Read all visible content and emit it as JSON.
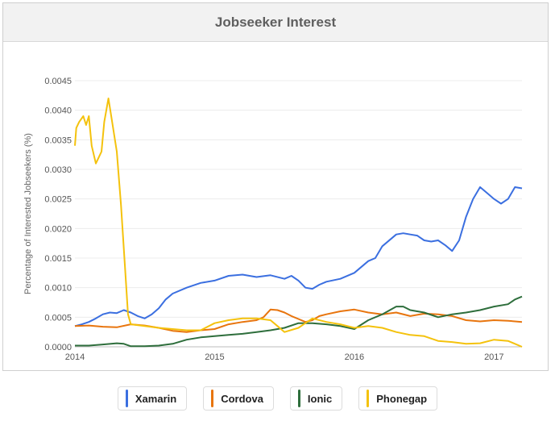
{
  "chart_data": {
    "type": "line",
    "title": "Jobseeker Interest",
    "ylabel": "Percentage of Interested Jobseekers (%)",
    "xlabel": "",
    "xlim": [
      2014.0,
      2017.2
    ],
    "ylim": [
      0,
      0.0045
    ],
    "xticks": [
      {
        "value": 2014,
        "label": "2014"
      },
      {
        "value": 2015,
        "label": "2015"
      },
      {
        "value": 2016,
        "label": "2016"
      },
      {
        "value": 2017,
        "label": "2017"
      }
    ],
    "yticks": [
      {
        "value": 0,
        "label": "0.0000"
      },
      {
        "value": 0.0005,
        "label": "0.0005"
      },
      {
        "value": 0.001,
        "label": "0.0010"
      },
      {
        "value": 0.0015,
        "label": "0.0015"
      },
      {
        "value": 0.002,
        "label": "0.0020"
      },
      {
        "value": 0.0025,
        "label": "0.0025"
      },
      {
        "value": 0.003,
        "label": "0.0030"
      },
      {
        "value": 0.0035,
        "label": "0.0035"
      },
      {
        "value": 0.004,
        "label": "0.0040"
      },
      {
        "value": 0.0045,
        "label": "0.0045"
      }
    ],
    "grid": true,
    "legend": "bottom",
    "series": [
      {
        "name": "Xamarin",
        "color": "#3b6fe0",
        "points": [
          [
            2014.0,
            0.00035
          ],
          [
            2014.05,
            0.00038
          ],
          [
            2014.1,
            0.00042
          ],
          [
            2014.15,
            0.00048
          ],
          [
            2014.2,
            0.00055
          ],
          [
            2014.25,
            0.00058
          ],
          [
            2014.3,
            0.00057
          ],
          [
            2014.35,
            0.00062
          ],
          [
            2014.4,
            0.00058
          ],
          [
            2014.45,
            0.00052
          ],
          [
            2014.5,
            0.00048
          ],
          [
            2014.55,
            0.00055
          ],
          [
            2014.6,
            0.00065
          ],
          [
            2014.65,
            0.0008
          ],
          [
            2014.7,
            0.0009
          ],
          [
            2014.8,
            0.001
          ],
          [
            2014.9,
            0.00108
          ],
          [
            2015.0,
            0.00112
          ],
          [
            2015.1,
            0.0012
          ],
          [
            2015.2,
            0.00122
          ],
          [
            2015.3,
            0.00118
          ],
          [
            2015.4,
            0.00121
          ],
          [
            2015.5,
            0.00115
          ],
          [
            2015.55,
            0.0012
          ],
          [
            2015.6,
            0.00112
          ],
          [
            2015.65,
            0.001
          ],
          [
            2015.7,
            0.00098
          ],
          [
            2015.75,
            0.00105
          ],
          [
            2015.8,
            0.0011
          ],
          [
            2015.9,
            0.00115
          ],
          [
            2016.0,
            0.00125
          ],
          [
            2016.1,
            0.00145
          ],
          [
            2016.15,
            0.0015
          ],
          [
            2016.2,
            0.0017
          ],
          [
            2016.3,
            0.0019
          ],
          [
            2016.35,
            0.00192
          ],
          [
            2016.4,
            0.0019
          ],
          [
            2016.45,
            0.00188
          ],
          [
            2016.5,
            0.0018
          ],
          [
            2016.55,
            0.00178
          ],
          [
            2016.6,
            0.0018
          ],
          [
            2016.65,
            0.00172
          ],
          [
            2016.7,
            0.00162
          ],
          [
            2016.75,
            0.0018
          ],
          [
            2016.8,
            0.0022
          ],
          [
            2016.85,
            0.0025
          ],
          [
            2016.9,
            0.0027
          ],
          [
            2016.95,
            0.0026
          ],
          [
            2017.0,
            0.0025
          ],
          [
            2017.05,
            0.00242
          ],
          [
            2017.1,
            0.0025
          ],
          [
            2017.15,
            0.0027
          ],
          [
            2017.2,
            0.00268
          ]
        ]
      },
      {
        "name": "Cordova",
        "color": "#e8750e",
        "points": [
          [
            2014.0,
            0.00035
          ],
          [
            2014.1,
            0.00036
          ],
          [
            2014.2,
            0.00034
          ],
          [
            2014.3,
            0.00033
          ],
          [
            2014.4,
            0.00038
          ],
          [
            2014.5,
            0.00036
          ],
          [
            2014.6,
            0.00032
          ],
          [
            2014.7,
            0.00027
          ],
          [
            2014.8,
            0.00025
          ],
          [
            2014.9,
            0.00028
          ],
          [
            2015.0,
            0.0003
          ],
          [
            2015.1,
            0.00038
          ],
          [
            2015.2,
            0.00042
          ],
          [
            2015.3,
            0.00045
          ],
          [
            2015.35,
            0.0005
          ],
          [
            2015.4,
            0.00063
          ],
          [
            2015.45,
            0.00062
          ],
          [
            2015.5,
            0.00058
          ],
          [
            2015.55,
            0.00052
          ],
          [
            2015.6,
            0.00047
          ],
          [
            2015.65,
            0.00042
          ],
          [
            2015.7,
            0.00045
          ],
          [
            2015.75,
            0.00052
          ],
          [
            2015.8,
            0.00055
          ],
          [
            2015.9,
            0.0006
          ],
          [
            2016.0,
            0.00063
          ],
          [
            2016.1,
            0.00058
          ],
          [
            2016.2,
            0.00055
          ],
          [
            2016.3,
            0.00058
          ],
          [
            2016.4,
            0.00052
          ],
          [
            2016.5,
            0.00056
          ],
          [
            2016.6,
            0.00055
          ],
          [
            2016.7,
            0.00052
          ],
          [
            2016.8,
            0.00045
          ],
          [
            2016.9,
            0.00043
          ],
          [
            2017.0,
            0.00045
          ],
          [
            2017.1,
            0.00044
          ],
          [
            2017.2,
            0.00042
          ]
        ]
      },
      {
        "name": "Ionic",
        "color": "#2e6e3c",
        "points": [
          [
            2014.0,
            2e-05
          ],
          [
            2014.1,
            2e-05
          ],
          [
            2014.2,
            4e-05
          ],
          [
            2014.3,
            6e-05
          ],
          [
            2014.35,
            5e-05
          ],
          [
            2014.4,
            1e-05
          ],
          [
            2014.5,
            1e-05
          ],
          [
            2014.6,
            2e-05
          ],
          [
            2014.7,
            5e-05
          ],
          [
            2014.8,
            0.00012
          ],
          [
            2014.9,
            0.00016
          ],
          [
            2015.0,
            0.00018
          ],
          [
            2015.1,
            0.0002
          ],
          [
            2015.2,
            0.00022
          ],
          [
            2015.3,
            0.00025
          ],
          [
            2015.4,
            0.00028
          ],
          [
            2015.45,
            0.0003
          ],
          [
            2015.5,
            0.00032
          ],
          [
            2015.6,
            0.0004
          ],
          [
            2015.7,
            0.0004
          ],
          [
            2015.8,
            0.00038
          ],
          [
            2015.9,
            0.00035
          ],
          [
            2016.0,
            0.0003
          ],
          [
            2016.1,
            0.00045
          ],
          [
            2016.2,
            0.00055
          ],
          [
            2016.3,
            0.00068
          ],
          [
            2016.35,
            0.00068
          ],
          [
            2016.4,
            0.00062
          ],
          [
            2016.5,
            0.00058
          ],
          [
            2016.6,
            0.0005
          ],
          [
            2016.7,
            0.00055
          ],
          [
            2016.8,
            0.00058
          ],
          [
            2016.9,
            0.00062
          ],
          [
            2017.0,
            0.00068
          ],
          [
            2017.1,
            0.00072
          ],
          [
            2017.15,
            0.0008
          ],
          [
            2017.2,
            0.00085
          ]
        ]
      },
      {
        "name": "Phonegap",
        "color": "#f4c20d",
        "points": [
          [
            2014.0,
            0.0034
          ],
          [
            2014.01,
            0.0037
          ],
          [
            2014.03,
            0.0038
          ],
          [
            2014.06,
            0.0039
          ],
          [
            2014.08,
            0.00375
          ],
          [
            2014.1,
            0.0039
          ],
          [
            2014.12,
            0.0034
          ],
          [
            2014.15,
            0.0031
          ],
          [
            2014.17,
            0.0032
          ],
          [
            2014.19,
            0.0033
          ],
          [
            2014.21,
            0.0038
          ],
          [
            2014.24,
            0.0042
          ],
          [
            2014.26,
            0.0039
          ],
          [
            2014.3,
            0.0033
          ],
          [
            2014.33,
            0.0024
          ],
          [
            2014.36,
            0.0013
          ],
          [
            2014.38,
            0.00055
          ],
          [
            2014.4,
            0.00038
          ],
          [
            2014.5,
            0.00035
          ],
          [
            2014.6,
            0.00032
          ],
          [
            2014.7,
            0.0003
          ],
          [
            2014.8,
            0.00028
          ],
          [
            2014.9,
            0.00028
          ],
          [
            2015.0,
            0.0004
          ],
          [
            2015.1,
            0.00045
          ],
          [
            2015.2,
            0.00048
          ],
          [
            2015.3,
            0.00048
          ],
          [
            2015.4,
            0.00045
          ],
          [
            2015.45,
            0.00035
          ],
          [
            2015.5,
            0.00025
          ],
          [
            2015.6,
            0.00032
          ],
          [
            2015.7,
            0.00048
          ],
          [
            2015.8,
            0.00042
          ],
          [
            2015.9,
            0.00038
          ],
          [
            2016.0,
            0.00032
          ],
          [
            2016.1,
            0.00035
          ],
          [
            2016.2,
            0.00032
          ],
          [
            2016.3,
            0.00025
          ],
          [
            2016.4,
            0.0002
          ],
          [
            2016.5,
            0.00018
          ],
          [
            2016.6,
            0.0001
          ],
          [
            2016.7,
            8e-05
          ],
          [
            2016.8,
            5e-05
          ],
          [
            2016.9,
            6e-05
          ],
          [
            2017.0,
            0.00012
          ],
          [
            2017.1,
            0.0001
          ],
          [
            2017.15,
            5e-05
          ],
          [
            2017.2,
            0.0
          ]
        ]
      }
    ]
  },
  "legend_items": [
    {
      "label": "Xamarin",
      "color": "#3b6fe0"
    },
    {
      "label": "Cordova",
      "color": "#e8750e"
    },
    {
      "label": "Ionic",
      "color": "#2e6e3c"
    },
    {
      "label": "Phonegap",
      "color": "#f4c20d"
    }
  ]
}
